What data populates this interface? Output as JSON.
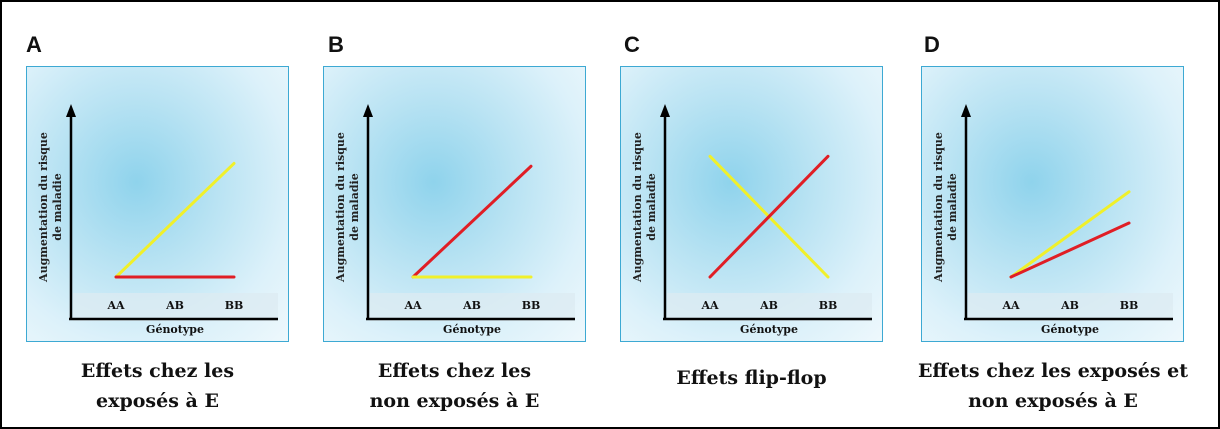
{
  "panels": [
    {
      "letter": "A",
      "ylabel_line1": "Augmentation du risque",
      "ylabel_line2": "de maladie",
      "xlabel": "Génotype",
      "ticks": [
        "AA",
        "AB",
        "BB"
      ],
      "caption_lines": [
        "Effets chez les",
        "exposés à E"
      ],
      "series": [
        {
          "color": "yellow",
          "start_level": 0.0,
          "end_level": 0.8
        },
        {
          "color": "red",
          "start_level": 0.0,
          "end_level": 0.0
        }
      ]
    },
    {
      "letter": "B",
      "ylabel_line1": "Augmentation du risque",
      "ylabel_line2": "de maladie",
      "xlabel": "Génotype",
      "ticks": [
        "AA",
        "AB",
        "BB"
      ],
      "caption_lines": [
        "Effets chez les",
        "non exposés à E"
      ],
      "series": [
        {
          "color": "red",
          "start_level": 0.0,
          "end_level": 0.78
        },
        {
          "color": "yellow",
          "start_level": 0.0,
          "end_level": 0.0
        }
      ]
    },
    {
      "letter": "C",
      "ylabel_line1": "Augmentation du risque",
      "ylabel_line2": "de maladie",
      "xlabel": "Génotype",
      "ticks": [
        "AA",
        "AB",
        "BB"
      ],
      "caption_lines": [
        "Effets flip-flop"
      ],
      "series": [
        {
          "color": "yellow",
          "start_level": 0.85,
          "end_level": 0.0
        },
        {
          "color": "red",
          "start_level": 0.0,
          "end_level": 0.85
        }
      ]
    },
    {
      "letter": "D",
      "ylabel_line1": "Augmentation du risque",
      "ylabel_line2": "de maladie",
      "xlabel": "Génotype",
      "ticks": [
        "AA",
        "AB",
        "BB"
      ],
      "caption_lines": [
        "Effets chez les exposés et",
        "non exposés à E"
      ],
      "series": [
        {
          "color": "yellow",
          "start_level": 0.0,
          "end_level": 0.6
        },
        {
          "color": "red",
          "start_level": 0.0,
          "end_level": 0.38
        }
      ]
    }
  ],
  "colors": {
    "yellow": "#f0f02a",
    "red": "#e01e25",
    "axis": "#000000",
    "border": "#3da9d3"
  }
}
